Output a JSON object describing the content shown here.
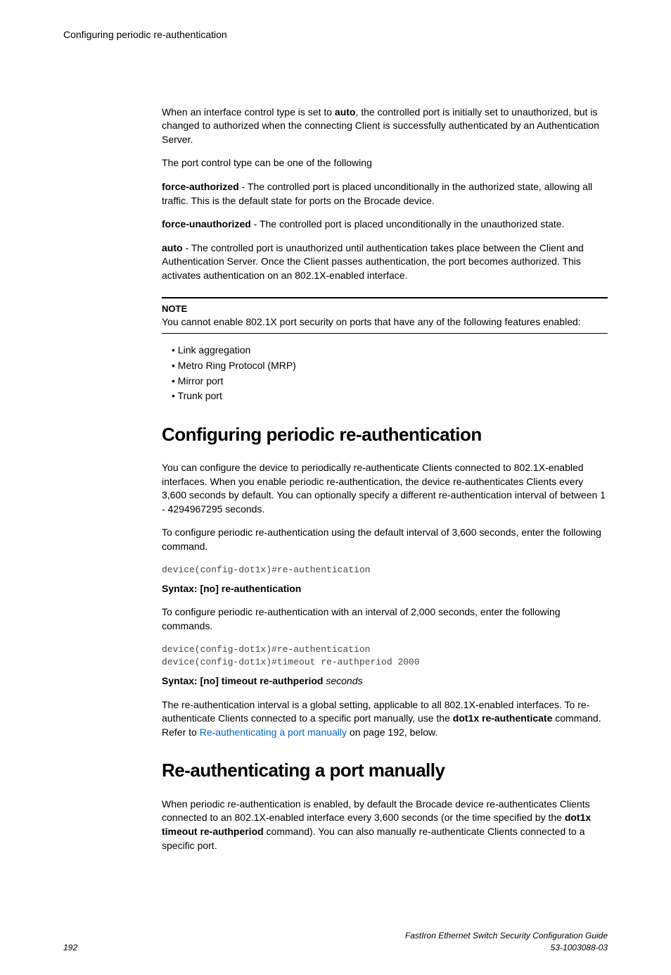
{
  "header": {
    "title": "Configuring periodic re-authentication"
  },
  "intro": {
    "p1a": "When an interface control type is set to ",
    "p1_bold": "auto",
    "p1b": ", the controlled port is initially set to unauthorized, but is changed to authorized when the connecting Client is successfully authenticated by an Authentication Server.",
    "p2": "The port control type can be one of the following",
    "fa_label": "force-authorized",
    "fa_text": " - The controlled port is placed unconditionally in the authorized state, allowing all traffic. This is the default state for ports on the Brocade device.",
    "fu_label": "force-unauthorized",
    "fu_text": " - The controlled port is placed unconditionally in the unauthorized state.",
    "auto_label": "auto",
    "auto_text": " - The controlled port is unauthorized until authentication takes place between the Client and Authentication Server. Once the Client passes authentication, the port becomes authorized. This activates authentication on an 802.1X-enabled interface."
  },
  "note": {
    "label": "NOTE",
    "text": "You cannot enable 802.1X port security on ports that have any of the following features enabled:",
    "items": [
      "Link aggregation",
      "Metro Ring Protocol (MRP)",
      "Mirror port",
      "Trunk port"
    ]
  },
  "sect1": {
    "heading": "Configuring periodic re-authentication",
    "p1": "You can configure the device to periodically re-authenticate Clients connected to 802.1X-enabled interfaces. When you enable periodic re-authentication, the device re-authenticates Clients every 3,600 seconds by default. You can optionally specify a different re-authentication interval of between 1 - 4294967295 seconds.",
    "p2": "To configure periodic re-authentication using the default interval of 3,600 seconds, enter the following command.",
    "code1": "device(config-dot1x)#re-authentication",
    "syntax1": "Syntax: [no] re-authentication",
    "p3": "To configure periodic re-authentication with an interval of 2,000 seconds, enter the following commands.",
    "code2": "device(config-dot1x)#re-authentication\ndevice(config-dot1x)#timeout re-authperiod 2000",
    "syntax2a": "Syntax: [no] timeout re-authperiod ",
    "syntax2b": "seconds",
    "p4a": "The re-authentication interval is a global setting, applicable to all 802.1X-enabled interfaces. To re-authenticate Clients connected to a specific port manually, use the ",
    "p4_bold": "dot1x re-authenticate",
    "p4b": " command. Refer to ",
    "p4_link": "Re-authenticating a port manually",
    "p4c": " on page 192, below."
  },
  "sect2": {
    "heading": "Re-authenticating a port manually",
    "p1a": "When periodic re-authentication is enabled, by default the Brocade device re-authenticates Clients connected to an 802.1X-enabled interface every 3,600 seconds (or the time specified by the ",
    "p1_bold": "dot1x timeout re-authperiod",
    "p1b": " command). You can also manually re-authenticate Clients connected to a specific port."
  },
  "footer": {
    "page": "192",
    "doc_title": "FastIron Ethernet Switch Security Configuration Guide",
    "doc_num": "53-1003088-03"
  }
}
